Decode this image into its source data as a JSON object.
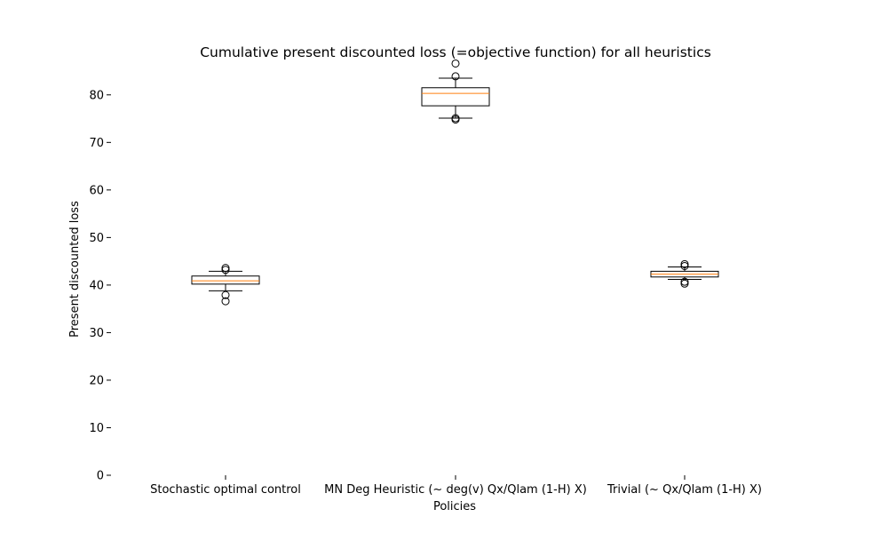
{
  "chart_data": {
    "type": "boxplot",
    "title": "Cumulative present discounted loss (=objective function) for all heuristics",
    "xlabel": "Policies",
    "ylabel": "Present discounted loss",
    "ylim": [
      0,
      86.5
    ],
    "yticks": [
      0,
      10,
      20,
      30,
      40,
      50,
      60,
      70,
      80
    ],
    "grid": false,
    "categories": [
      "Stochastic optimal control",
      "MN Deg Heuristic (~ deg(v) Qx/Qlam (1-H) X)",
      "Trivial (~ Qx/Qlam (1-H) X)"
    ],
    "boxes": [
      {
        "whisker_low": 38.8,
        "q1": 40.2,
        "median": 40.9,
        "q3": 41.9,
        "whisker_high": 42.9,
        "outliers": [
          36.6,
          37.9,
          43.2,
          43.6
        ]
      },
      {
        "whisker_low": 75.1,
        "q1": 77.7,
        "median": 80.3,
        "q3": 81.5,
        "whisker_high": 83.5,
        "outliers": [
          74.8,
          75.1,
          83.9,
          86.6
        ]
      },
      {
        "whisker_low": 41.2,
        "q1": 41.7,
        "median": 42.3,
        "q3": 42.9,
        "whisker_high": 43.8,
        "outliers": [
          40.3,
          40.7,
          44.0,
          44.4
        ]
      }
    ],
    "colors": {
      "box": "#000000",
      "median": "#ff7f0e"
    }
  }
}
